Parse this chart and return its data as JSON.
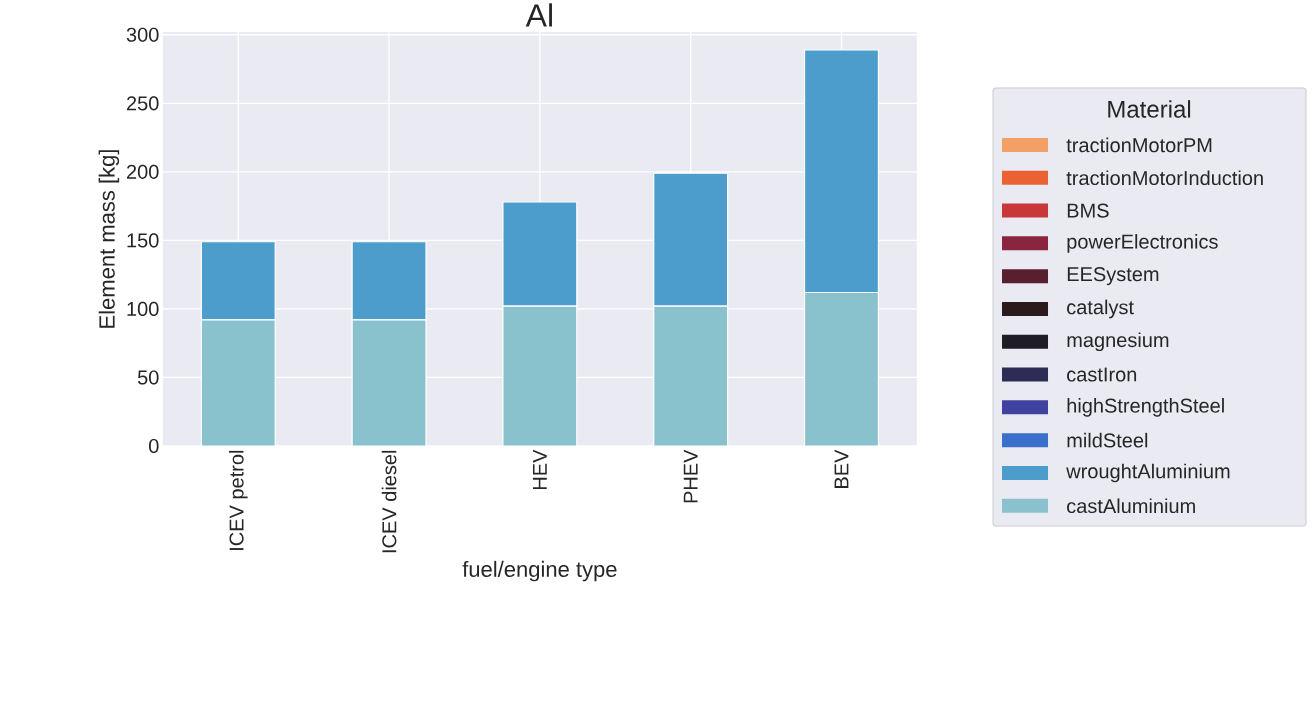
{
  "chart_data": {
    "type": "bar",
    "title": "Al",
    "xlabel": "fuel/engine type",
    "ylabel": "Element mass [kg]",
    "legend_title": "Material",
    "categories": [
      "ICEV petrol",
      "ICEV diesel",
      "HEV",
      "PHEV",
      "BEV"
    ],
    "stacked": true,
    "grid": true,
    "legend": "right",
    "ylim": [
      0,
      302
    ],
    "yticks": [
      0,
      50,
      100,
      150,
      200,
      250,
      300
    ],
    "series": [
      {
        "name": "castAluminium",
        "color": "#89c2cd",
        "values": [
          92,
          92,
          102,
          102,
          112
        ]
      },
      {
        "name": "wroughtAluminium",
        "color": "#4c9dcc",
        "values": [
          57,
          57,
          76,
          97,
          177
        ]
      },
      {
        "name": "mildSteel",
        "color": "#3a6fcc",
        "values": [
          0,
          0,
          0,
          0,
          0
        ]
      },
      {
        "name": "highStrengthSteel",
        "color": "#4042a0",
        "values": [
          0,
          0,
          0,
          0,
          0
        ]
      },
      {
        "name": "castIron",
        "color": "#2d2c55",
        "values": [
          0,
          0,
          0,
          0,
          0
        ]
      },
      {
        "name": "magnesium",
        "color": "#1e1c26",
        "values": [
          0,
          0,
          0,
          0,
          0
        ]
      },
      {
        "name": "catalyst",
        "color": "#2a1a1c",
        "values": [
          0,
          0,
          0,
          0,
          0
        ]
      },
      {
        "name": "EESystem",
        "color": "#581f2e",
        "values": [
          0,
          0,
          0,
          0,
          0
        ]
      },
      {
        "name": "powerElectronics",
        "color": "#8a2540",
        "values": [
          0,
          0,
          0,
          0,
          0
        ]
      },
      {
        "name": "BMS",
        "color": "#c93838",
        "values": [
          0,
          0,
          0,
          0,
          0
        ]
      },
      {
        "name": "tractionMotorInduction",
        "color": "#ea6232",
        "values": [
          0,
          0,
          0,
          0,
          0
        ]
      },
      {
        "name": "tractionMotorPM",
        "color": "#f2a065",
        "values": [
          0,
          0,
          0,
          0,
          0
        ]
      }
    ]
  }
}
